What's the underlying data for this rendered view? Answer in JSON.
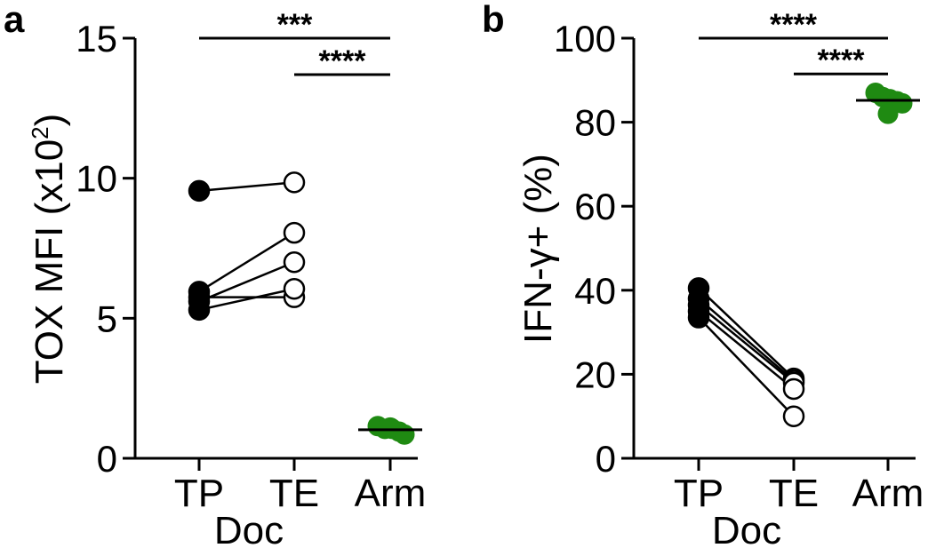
{
  "colors": {
    "axis": "#000000",
    "arm_fill": "#1f8a12",
    "tp_fill": "#000000",
    "te_fill": "#ffffff"
  },
  "chart_data": [
    {
      "type": "scatter",
      "panel": "a",
      "ylabel": "TOX MFI (x10",
      "ylabel_sup": "2",
      "ylabel_end": ")",
      "ylim": [
        0,
        15
      ],
      "yticks": [
        "0",
        "5",
        "10",
        "15"
      ],
      "ytick_values": [
        0,
        5,
        10,
        15
      ],
      "categories": [
        "TP",
        "TE",
        "Arm"
      ],
      "group_label": "Doc",
      "paired": [
        {
          "TP": 9.55,
          "TE": 9.85
        },
        {
          "TP": 5.95,
          "TE": 8.05
        },
        {
          "TP": 5.6,
          "TE": 7.0
        },
        {
          "TP": 5.75,
          "TE": 5.75
        },
        {
          "TP": 5.3,
          "TE": 6.05
        }
      ],
      "arm_values": [
        1.15,
        1.05,
        1.05,
        0.95,
        0.85,
        1.1
      ],
      "arm_mean": 1.02,
      "significance": [
        {
          "label": "***",
          "from": "TP",
          "to": "Arm",
          "y": 15.0
        },
        {
          "label": "****",
          "from": "TE",
          "to": "Arm",
          "y": 13.7
        }
      ]
    },
    {
      "type": "scatter",
      "panel": "b",
      "ylabel": "IFN-γ+ (%)",
      "ylim": [
        0,
        100
      ],
      "yticks": [
        "0",
        "20",
        "40",
        "60",
        "80",
        "100"
      ],
      "ytick_values": [
        0,
        20,
        40,
        60,
        80,
        100
      ],
      "categories": [
        "TP",
        "TE",
        "Arm"
      ],
      "group_label": "Doc",
      "paired": [
        {
          "TP": 40.5,
          "TE": 19.0
        },
        {
          "TP": 38.0,
          "TE": 18.5
        },
        {
          "TP": 36.5,
          "TE": 18.0
        },
        {
          "TP": 35.0,
          "TE": 16.5
        },
        {
          "TP": 33.5,
          "TE": 10.0
        }
      ],
      "arm_values": [
        87.0,
        86.0,
        85.5,
        85.0,
        84.5,
        82.0
      ],
      "arm_mean": 85.2,
      "significance": [
        {
          "label": "****",
          "from": "TP",
          "to": "Arm",
          "y": 100.0
        },
        {
          "label": "****",
          "from": "TE",
          "to": "Arm",
          "y": 91.5
        }
      ]
    }
  ]
}
